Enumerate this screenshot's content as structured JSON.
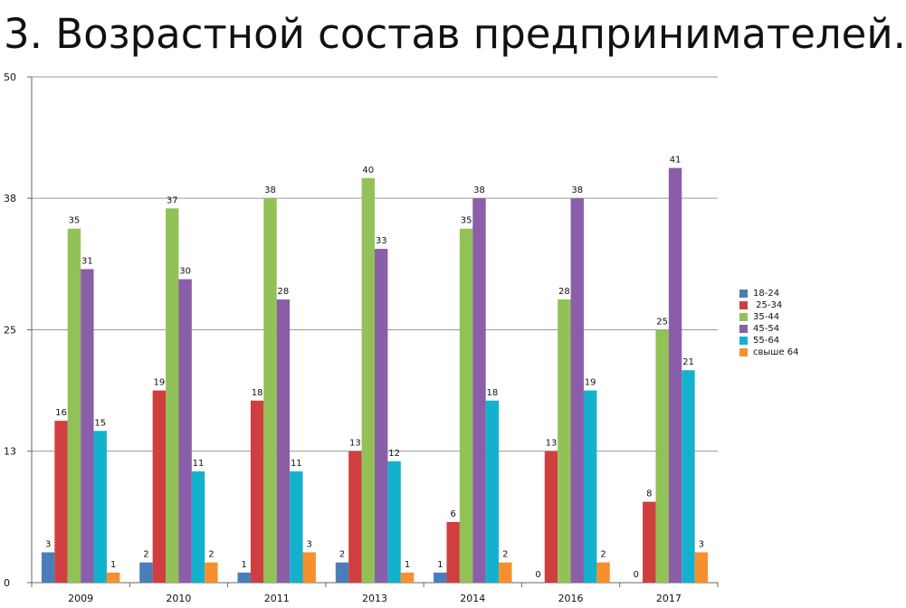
{
  "slide": {
    "title": "3. Возрастной состав предпринимателей."
  },
  "chart_data": {
    "type": "bar",
    "title": "",
    "xlabel": "",
    "ylabel": "",
    "ylim": [
      0,
      50
    ],
    "yticks": [
      "0",
      "13",
      "25",
      "38",
      "50"
    ],
    "categories": [
      "2009",
      "2010",
      "2011",
      "2013",
      "2014",
      "2016",
      "2017"
    ],
    "grid": true,
    "legend_position": "right",
    "series": [
      {
        "name": "18-24",
        "color": "#4a7ebb",
        "values": [
          3,
          2,
          1,
          2,
          1,
          0,
          0
        ]
      },
      {
        "name": " 25-34",
        "color": "#cf3f3f",
        "values": [
          16,
          19,
          18,
          13,
          6,
          13,
          8
        ]
      },
      {
        "name": "35-44",
        "color": "#92c158",
        "values": [
          35,
          37,
          38,
          40,
          35,
          28,
          25
        ]
      },
      {
        "name": "45-54",
        "color": "#8a5ea8",
        "values": [
          31,
          30,
          28,
          33,
          38,
          38,
          41
        ]
      },
      {
        "name": "55-64",
        "color": "#14b1cc",
        "values": [
          15,
          11,
          11,
          12,
          18,
          19,
          21
        ]
      },
      {
        "name": "свыше 64",
        "color": "#f5902d",
        "values": [
          1,
          2,
          3,
          1,
          2,
          2,
          3
        ]
      }
    ]
  }
}
